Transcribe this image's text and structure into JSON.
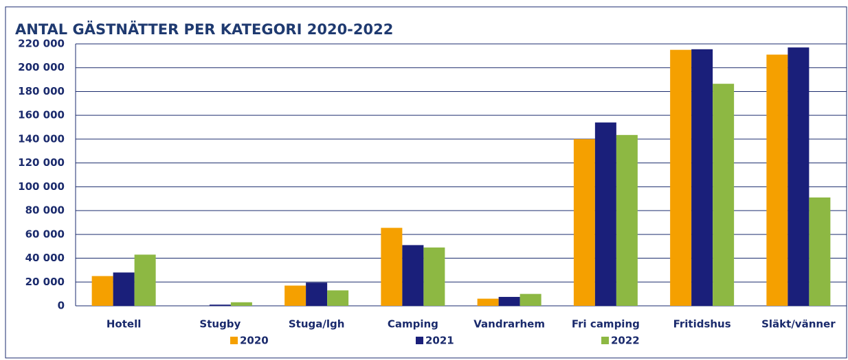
{
  "chart_data": {
    "type": "bar",
    "title": "ANTAL GÄSTNÄTTER PER KATEGORI 2020-2022",
    "categories": [
      "Hotell",
      "Stugby",
      "Stuga/lgh",
      "Camping",
      "Vandrarhem",
      "Fri camping",
      "Fritidshus",
      "Släkt/vänner"
    ],
    "series": [
      {
        "name": "2020",
        "color": "#f5a000",
        "values": [
          25000,
          0,
          17000,
          65500,
          6000,
          140000,
          215000,
          211000
        ]
      },
      {
        "name": "2021",
        "color": "#1a1f7a",
        "values": [
          28000,
          1000,
          19500,
          51000,
          7500,
          154000,
          215500,
          217000
        ]
      },
      {
        "name": "2022",
        "color": "#8db843",
        "values": [
          43000,
          3000,
          13000,
          49000,
          10000,
          143500,
          186500,
          91000
        ]
      }
    ],
    "ylim": [
      0,
      220000
    ],
    "yticks": [
      0,
      {
        "value": 20000,
        "label": "20 000"
      },
      {
        "value": 40000,
        "label": "40 000"
      },
      {
        "value": 60000,
        "label": "60 000"
      },
      {
        "value": 80000,
        "label": "80 000"
      },
      {
        "value": 100000,
        "label": "100 000"
      },
      {
        "value": 120000,
        "label": "120 000"
      },
      {
        "value": 140000,
        "label": "140 000"
      },
      {
        "value": 160000,
        "label": "160 000"
      },
      {
        "value": 180000,
        "label": "180 000"
      },
      {
        "value": 200000,
        "label": "200 000"
      },
      {
        "value": 220000,
        "label": "220 000"
      }
    ],
    "grid": true,
    "legend": "bottom"
  }
}
